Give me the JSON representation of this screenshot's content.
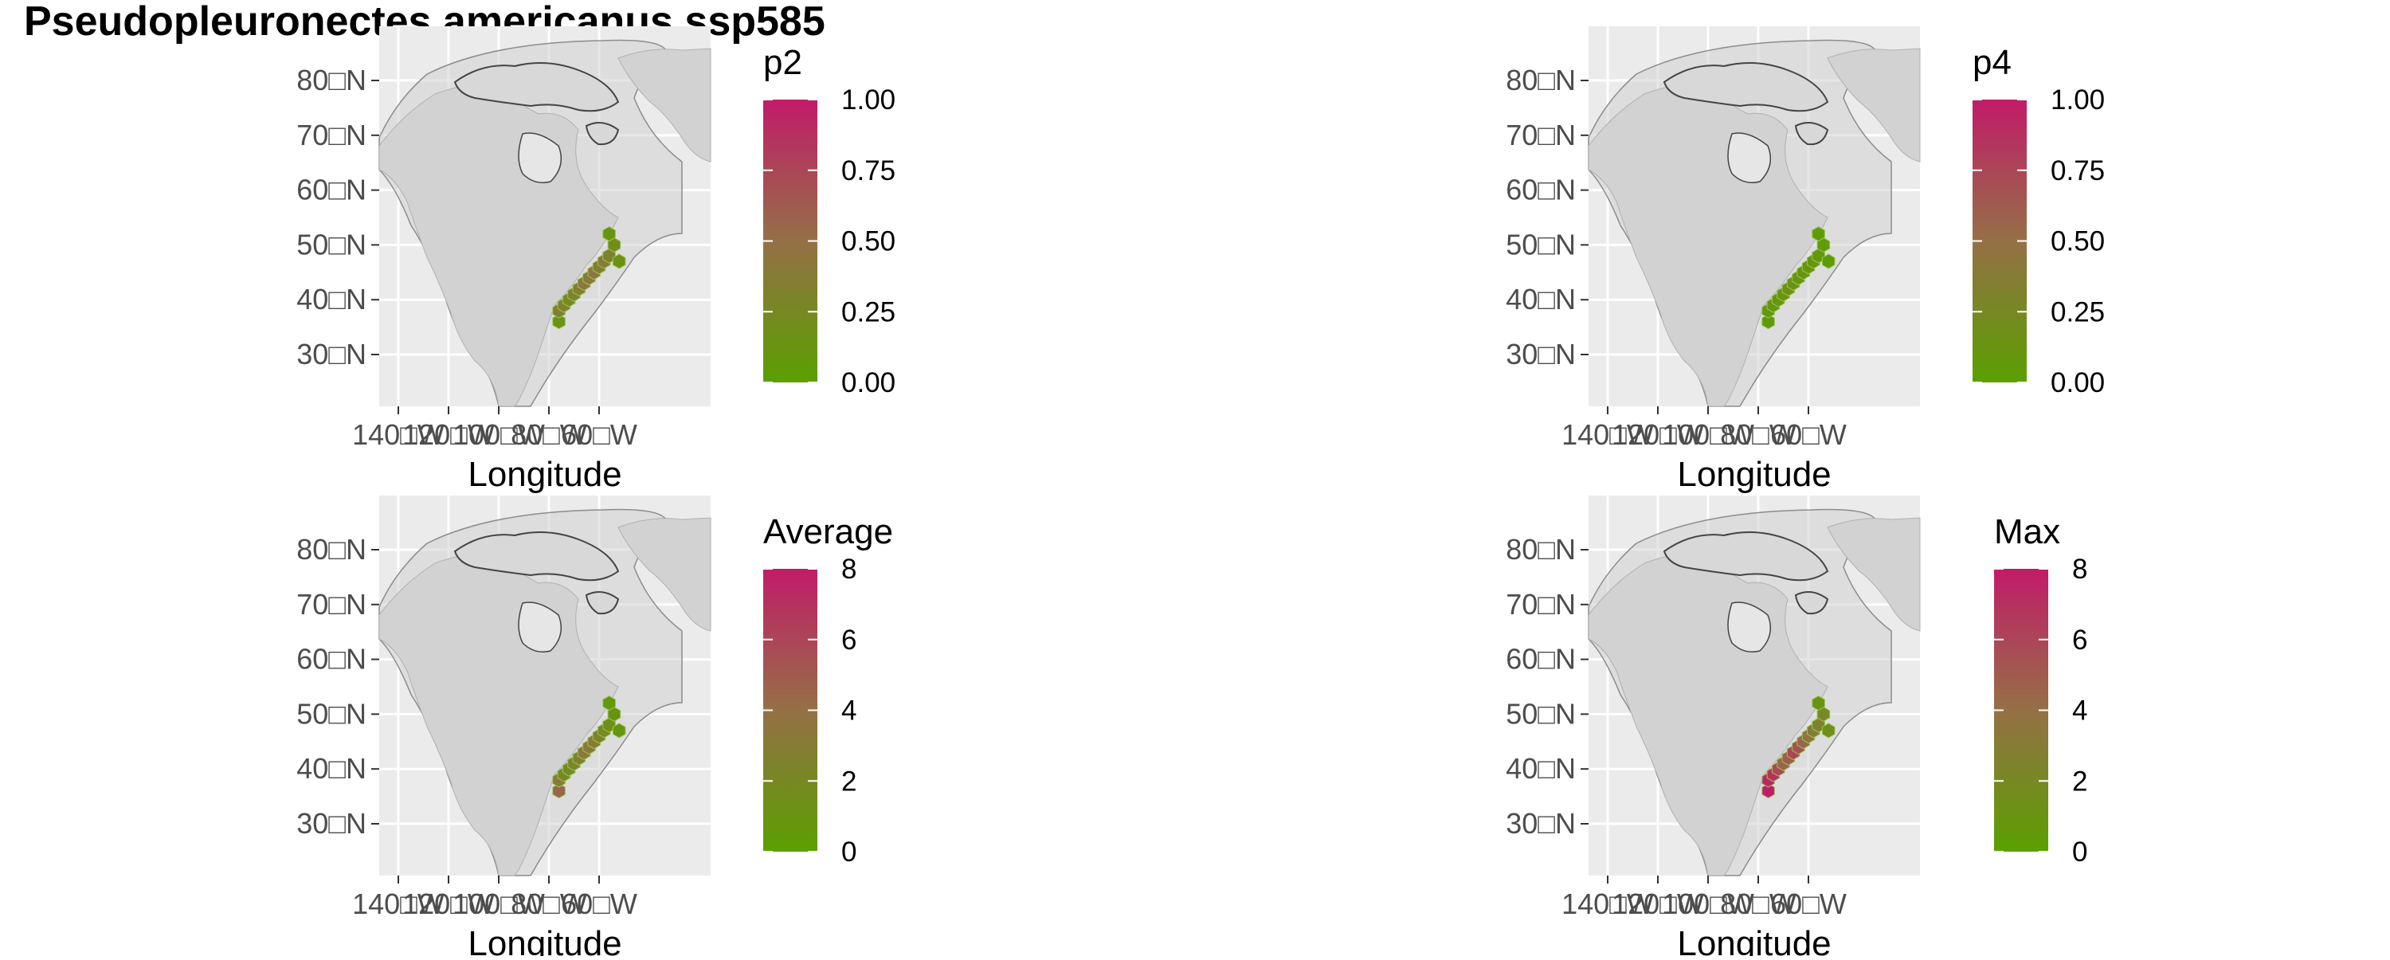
{
  "title": "Pseudopleuronectes americanus ssp585",
  "colors": {
    "panel_bg": "#ebebeb",
    "grid": "#ffffff",
    "land": "#d2d2d2",
    "coast": "#444444",
    "shelf": "#8c8c8c",
    "low": "#5aa000",
    "mid": "#957046",
    "high": "#c21b69"
  },
  "axis": {
    "xlabel": "Longitude",
    "x_ticks": [
      "140□W",
      "120□W",
      "100□W",
      "80□W",
      "60□W"
    ],
    "y_ticks": [
      "80□N",
      "70□N",
      "60□N",
      "50□N",
      "40□N",
      "30□N"
    ]
  },
  "chart_data": [
    {
      "type": "heatmap",
      "panel": "p2",
      "legend_title": "p2",
      "legend_labels": [
        "1.00",
        "0.75",
        "0.50",
        "0.25",
        "0.00"
      ],
      "range": [
        0,
        1
      ],
      "cells": [
        {
          "lon": -76,
          "lat": 36,
          "v": 0.15
        },
        {
          "lon": -76,
          "lat": 38,
          "v": 0.35
        },
        {
          "lon": -74,
          "lat": 39,
          "v": 0.3
        },
        {
          "lon": -72,
          "lat": 40,
          "v": 0.25
        },
        {
          "lon": -70,
          "lat": 41,
          "v": 0.3
        },
        {
          "lon": -68,
          "lat": 42,
          "v": 0.35
        },
        {
          "lon": -66,
          "lat": 43,
          "v": 0.45
        },
        {
          "lon": -64,
          "lat": 44,
          "v": 0.4
        },
        {
          "lon": -62,
          "lat": 45,
          "v": 0.45
        },
        {
          "lon": -60,
          "lat": 46,
          "v": 0.35
        },
        {
          "lon": -58,
          "lat": 47,
          "v": 0.4
        },
        {
          "lon": -56,
          "lat": 48,
          "v": 0.3
        },
        {
          "lon": -54,
          "lat": 50,
          "v": 0.2
        },
        {
          "lon": -52,
          "lat": 47,
          "v": 0.15
        },
        {
          "lon": -56,
          "lat": 52,
          "v": 0.1
        }
      ]
    },
    {
      "type": "heatmap",
      "panel": "p4",
      "legend_title": "p4",
      "legend_labels": [
        "1.00",
        "0.75",
        "0.50",
        "0.25",
        "0.00"
      ],
      "range": [
        0,
        1
      ],
      "cells": [
        {
          "lon": -76,
          "lat": 36,
          "v": 0.05
        },
        {
          "lon": -76,
          "lat": 38,
          "v": 0.08
        },
        {
          "lon": -74,
          "lat": 39,
          "v": 0.1
        },
        {
          "lon": -72,
          "lat": 40,
          "v": 0.1
        },
        {
          "lon": -70,
          "lat": 41,
          "v": 0.12
        },
        {
          "lon": -68,
          "lat": 42,
          "v": 0.15
        },
        {
          "lon": -66,
          "lat": 43,
          "v": 0.15
        },
        {
          "lon": -64,
          "lat": 44,
          "v": 0.12
        },
        {
          "lon": -62,
          "lat": 45,
          "v": 0.1
        },
        {
          "lon": -60,
          "lat": 46,
          "v": 0.1
        },
        {
          "lon": -58,
          "lat": 47,
          "v": 0.08
        },
        {
          "lon": -56,
          "lat": 48,
          "v": 0.08
        },
        {
          "lon": -54,
          "lat": 50,
          "v": 0.05
        },
        {
          "lon": -52,
          "lat": 47,
          "v": 0.05
        },
        {
          "lon": -56,
          "lat": 52,
          "v": 0.05
        }
      ]
    },
    {
      "type": "heatmap",
      "panel": "Average",
      "legend_title": "Average",
      "legend_labels": [
        "8",
        "6",
        "4",
        "2",
        "0"
      ],
      "range": [
        0,
        8
      ],
      "cells": [
        {
          "lon": -76,
          "lat": 36,
          "v": 4.5
        },
        {
          "lon": -76,
          "lat": 38,
          "v": 3.2
        },
        {
          "lon": -74,
          "lat": 39,
          "v": 2.0
        },
        {
          "lon": -72,
          "lat": 40,
          "v": 1.8
        },
        {
          "lon": -70,
          "lat": 41,
          "v": 2.2
        },
        {
          "lon": -68,
          "lat": 42,
          "v": 2.5
        },
        {
          "lon": -66,
          "lat": 43,
          "v": 3.5
        },
        {
          "lon": -64,
          "lat": 44,
          "v": 3.2
        },
        {
          "lon": -62,
          "lat": 45,
          "v": 3.0
        },
        {
          "lon": -60,
          "lat": 46,
          "v": 2.4
        },
        {
          "lon": -58,
          "lat": 47,
          "v": 2.0
        },
        {
          "lon": -56,
          "lat": 48,
          "v": 1.5
        },
        {
          "lon": -54,
          "lat": 50,
          "v": 1.0
        },
        {
          "lon": -52,
          "lat": 47,
          "v": 0.8
        },
        {
          "lon": -56,
          "lat": 52,
          "v": 0.6
        }
      ]
    },
    {
      "type": "heatmap",
      "panel": "Max",
      "legend_title": "Max",
      "legend_labels": [
        "8",
        "6",
        "4",
        "2",
        "0"
      ],
      "range": [
        0,
        8
      ],
      "cells": [
        {
          "lon": -76,
          "lat": 36,
          "v": 8.0
        },
        {
          "lon": -76,
          "lat": 38,
          "v": 7.5
        },
        {
          "lon": -74,
          "lat": 39,
          "v": 7.0
        },
        {
          "lon": -72,
          "lat": 40,
          "v": 6.0
        },
        {
          "lon": -70,
          "lat": 41,
          "v": 4.5
        },
        {
          "lon": -68,
          "lat": 42,
          "v": 5.0
        },
        {
          "lon": -66,
          "lat": 43,
          "v": 6.0
        },
        {
          "lon": -64,
          "lat": 44,
          "v": 5.5
        },
        {
          "lon": -62,
          "lat": 45,
          "v": 4.5
        },
        {
          "lon": -60,
          "lat": 46,
          "v": 3.5
        },
        {
          "lon": -58,
          "lat": 47,
          "v": 3.0
        },
        {
          "lon": -56,
          "lat": 48,
          "v": 2.5
        },
        {
          "lon": -54,
          "lat": 50,
          "v": 2.0
        },
        {
          "lon": -52,
          "lat": 47,
          "v": 1.5
        },
        {
          "lon": -56,
          "lat": 52,
          "v": 1.0
        }
      ]
    }
  ]
}
